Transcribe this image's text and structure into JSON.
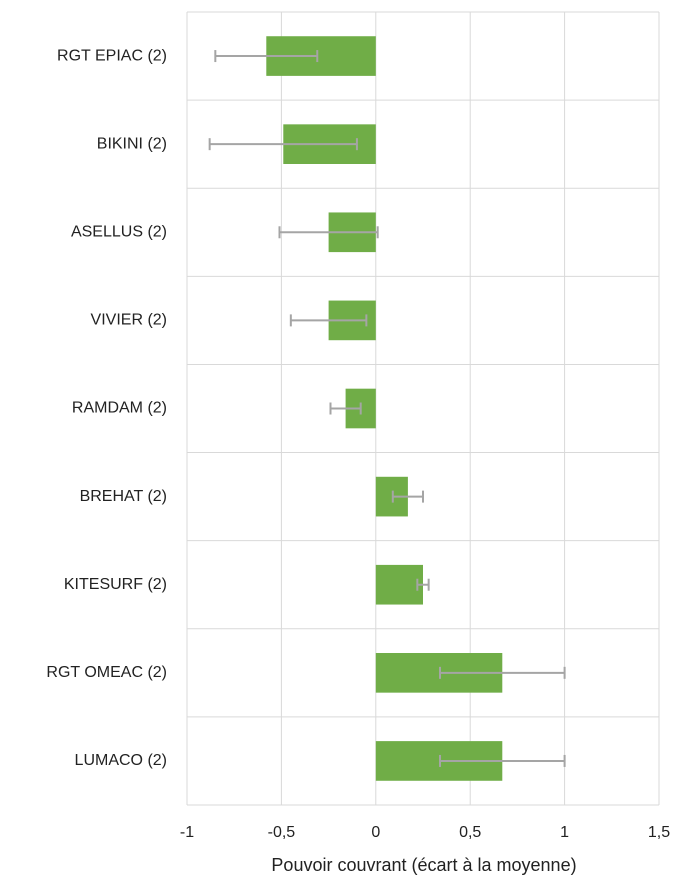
{
  "chart_data": {
    "type": "bar",
    "orientation": "horizontal",
    "categories": [
      "RGT EPIAC (2)",
      "BIKINI (2)",
      "ASELLUS (2)",
      "VIVIER (2)",
      "RAMDAM (2)",
      "BREHAT (2)",
      "KITESURF (2)",
      "RGT OMEAC (2)",
      "LUMACO (2)"
    ],
    "values": [
      -0.58,
      -0.49,
      -0.25,
      -0.25,
      -0.16,
      0.17,
      0.25,
      0.67,
      0.67
    ],
    "errors": [
      0.27,
      0.39,
      0.26,
      0.2,
      0.08,
      0.08,
      0.03,
      0.33,
      0.33
    ],
    "color": "#70ad47",
    "error_color": "#a5a5a5",
    "x_label": "Pouvoir couvrant (écart à la moyenne)",
    "xlim": [
      -1,
      1.5
    ],
    "xticks": [
      -1,
      {
        "value": -0.5,
        "label": "-0,5"
      },
      0,
      {
        "value": 0.5,
        "label": "0,5"
      },
      1,
      {
        "value": 1.5,
        "label": "1,5"
      }
    ],
    "grid": true
  }
}
